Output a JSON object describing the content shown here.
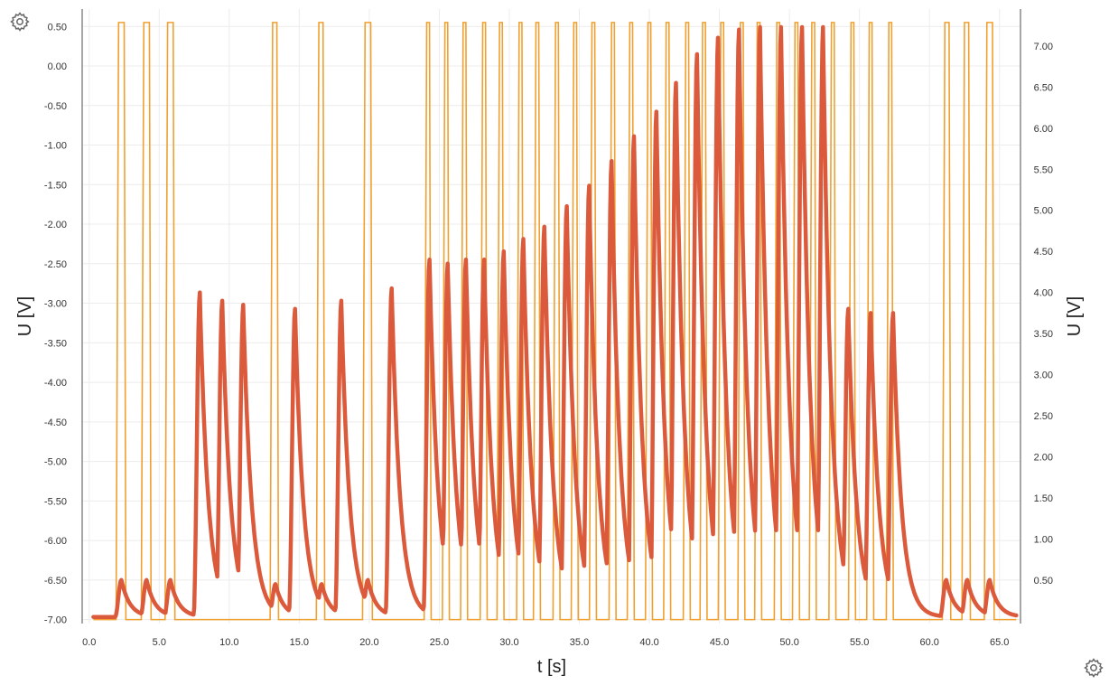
{
  "icons": {
    "top_left": "gear-icon",
    "bottom_right": "gear-icon"
  },
  "chart_data": {
    "type": "line",
    "xlabel": "t [s]",
    "ylabel_left": "U [V]",
    "ylabel_right": "U [V]",
    "x_ticks": [
      "0.0",
      "5.0",
      "10.0",
      "15.0",
      "20.0",
      "25.0",
      "30.0",
      "35.0",
      "40.0",
      "45.0",
      "50.0",
      "55.0",
      "60.0",
      "65.0"
    ],
    "y_left_ticks": [
      "0.50",
      "0.00",
      "-0.50",
      "-1.00",
      "-1.50",
      "-2.00",
      "-2.50",
      "-3.00",
      "-3.50",
      "-4.00",
      "-4.50",
      "-5.00",
      "-5.50",
      "-6.00",
      "-6.50",
      "-7.00"
    ],
    "y_right_ticks": [
      "7.00",
      "6.50",
      "6.00",
      "5.50",
      "5.00",
      "4.50",
      "4.00",
      "3.50",
      "3.00",
      "2.50",
      "2.00",
      "1.50",
      "1.00",
      "0.50"
    ],
    "xlim": [
      -0.5,
      66.5
    ],
    "ylim_left": [
      -7.05,
      0.72
    ],
    "ylim_right": [
      -0.03,
      7.45
    ],
    "grid": true,
    "colors": {
      "pulse_series": "#f0a030",
      "response_series": "#dc5a3c",
      "axis": "#888888"
    },
    "series": [
      {
        "axis": "left",
        "baseline": -7.0,
        "peak": 0.55,
        "pulses": [
          [
            2.0,
            2.5
          ],
          [
            3.8,
            4.3
          ],
          [
            5.5,
            6.0
          ],
          [
            13.0,
            13.4
          ],
          [
            16.3,
            16.7
          ],
          [
            19.6,
            20.1
          ],
          [
            24.0,
            24.3
          ],
          [
            25.3,
            25.6
          ],
          [
            26.6,
            26.9
          ],
          [
            28.0,
            28.3
          ],
          [
            29.2,
            29.5
          ],
          [
            30.6,
            30.9
          ],
          [
            31.8,
            32.1
          ],
          [
            33.2,
            33.5
          ],
          [
            34.5,
            34.8
          ],
          [
            35.8,
            36.1
          ],
          [
            37.2,
            37.5
          ],
          [
            38.5,
            38.8
          ],
          [
            39.8,
            40.1
          ],
          [
            41.1,
            41.4
          ],
          [
            42.5,
            42.8
          ],
          [
            43.7,
            44.0
          ],
          [
            45.0,
            45.3
          ],
          [
            46.4,
            46.7
          ],
          [
            47.6,
            47.9
          ],
          [
            49.0,
            49.3
          ],
          [
            50.3,
            50.6
          ],
          [
            51.5,
            51.8
          ],
          [
            52.9,
            53.2
          ],
          [
            54.3,
            54.6
          ],
          [
            55.6,
            55.9
          ],
          [
            57.0,
            57.3
          ],
          [
            61.0,
            61.4
          ],
          [
            62.4,
            62.8
          ],
          [
            64.0,
            64.5
          ]
        ]
      },
      {
        "axis": "right",
        "baseline": 0.05,
        "spikes": [
          [
            2.3,
            0.45
          ],
          [
            4.1,
            0.45
          ],
          [
            5.8,
            0.45
          ],
          [
            7.9,
            3.95
          ],
          [
            9.5,
            3.85
          ],
          [
            11.0,
            3.8
          ],
          [
            13.3,
            0.4
          ],
          [
            14.7,
            3.75
          ],
          [
            16.6,
            0.4
          ],
          [
            18.0,
            3.85
          ],
          [
            19.9,
            0.45
          ],
          [
            21.6,
            4.0
          ],
          [
            24.3,
            4.35
          ],
          [
            25.6,
            4.3
          ],
          [
            26.9,
            4.35
          ],
          [
            28.2,
            4.35
          ],
          [
            29.6,
            4.45
          ],
          [
            31.0,
            4.6
          ],
          [
            32.5,
            4.75
          ],
          [
            34.1,
            5.0
          ],
          [
            35.7,
            5.25
          ],
          [
            37.3,
            5.55
          ],
          [
            38.9,
            5.85
          ],
          [
            40.5,
            6.15
          ],
          [
            41.9,
            6.5
          ],
          [
            43.4,
            6.85
          ],
          [
            44.9,
            7.05
          ],
          [
            46.4,
            7.15
          ],
          [
            47.9,
            7.18
          ],
          [
            49.4,
            7.18
          ],
          [
            50.9,
            7.18
          ],
          [
            52.4,
            7.18
          ],
          [
            54.2,
            3.75
          ],
          [
            55.8,
            3.7
          ],
          [
            57.4,
            3.7
          ],
          [
            61.2,
            0.45
          ],
          [
            62.7,
            0.45
          ],
          [
            64.3,
            0.45
          ]
        ]
      }
    ]
  }
}
